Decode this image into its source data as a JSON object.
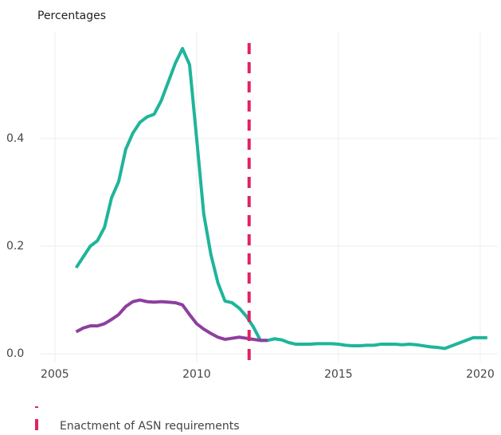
{
  "chart_data": {
    "type": "line",
    "title": "Percentages",
    "x": [
      2005.75,
      2006,
      2006.25,
      2006.5,
      2006.75,
      2007,
      2007.25,
      2007.5,
      2007.75,
      2008,
      2008.25,
      2008.5,
      2008.75,
      2009,
      2009.25,
      2009.5,
      2009.75,
      2010,
      2010.25,
      2010.5,
      2010.75,
      2011,
      2011.25,
      2011.5,
      2011.75,
      2012,
      2012.25,
      2012.5,
      2012.75,
      2013,
      2013.25,
      2013.5,
      2013.75,
      2014,
      2014.25,
      2014.5,
      2014.75,
      2015,
      2015.25,
      2015.5,
      2015.75,
      2016,
      2016.25,
      2016.5,
      2016.75,
      2017,
      2017.25,
      2017.5,
      2017.75,
      2018,
      2018.25,
      2018.5,
      2018.75,
      2019,
      2019.25,
      2019.5,
      2019.75,
      2020,
      2020.25
    ],
    "series": [
      {
        "color": "#1fb59a",
        "values": [
          0.16,
          0.18,
          0.2,
          0.21,
          0.235,
          0.29,
          0.32,
          0.38,
          0.41,
          0.43,
          0.44,
          0.445,
          0.47,
          0.505,
          0.54,
          0.567,
          0.537,
          0.4,
          0.26,
          0.185,
          0.132,
          0.098,
          0.095,
          0.085,
          0.07,
          0.05,
          0.025,
          0.025,
          0.028,
          0.026,
          0.021,
          0.018,
          0.018,
          0.018,
          0.019,
          0.019,
          0.019,
          0.018,
          0.016,
          0.015,
          0.015,
          0.016,
          0.016,
          0.018,
          0.018,
          0.018,
          0.017,
          0.018,
          0.017,
          0.015,
          0.013,
          0.012,
          0.01,
          0.015,
          0.02,
          0.025,
          0.03,
          0.03,
          0.03
        ]
      },
      {
        "color": "#8e3f9e",
        "values": [
          0.041,
          0.048,
          0.052,
          0.052,
          0.056,
          0.064,
          0.073,
          0.088,
          0.097,
          0.1,
          0.097,
          0.096,
          0.097,
          0.096,
          0.095,
          0.091,
          0.073,
          0.056,
          0.046,
          0.038,
          0.031,
          0.027,
          0.029,
          0.031,
          0.029,
          0.027,
          0.025,
          0.025,
          null,
          null,
          null,
          null,
          null,
          null,
          null,
          null,
          null,
          null,
          null,
          null,
          null,
          null,
          null,
          null,
          null,
          null,
          null,
          null,
          null,
          null,
          null,
          null,
          null,
          null,
          null,
          null,
          null,
          null,
          null
        ]
      }
    ],
    "vline": {
      "x": 2011.85,
      "name": "Enactment of ASN requirements",
      "color": "#e0245e"
    },
    "xlim": [
      2004.47,
      2020.62
    ],
    "xticks": [
      2005,
      2010,
      2015,
      2020
    ],
    "ylim": [
      -0.016,
      0.598
    ],
    "yticks": [
      {
        "value": 0,
        "label": "0.0"
      },
      0.2,
      0.4
    ],
    "grid": true
  }
}
